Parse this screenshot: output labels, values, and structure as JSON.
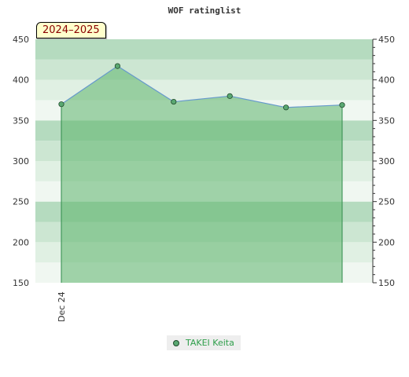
{
  "chart_data": {
    "type": "area",
    "title": "WOF ratinglist",
    "season_label": "2024–2025",
    "x_tick_labels": [
      "Dec 24"
    ],
    "series": [
      {
        "name": "TAKEI Keita",
        "values": [
          370,
          417,
          373,
          380,
          366,
          369
        ]
      }
    ],
    "ylim": [
      150,
      450
    ],
    "y_ticks": [
      150,
      200,
      250,
      300,
      350,
      400,
      450
    ],
    "grid": true,
    "legend_position": "bottom",
    "colors": {
      "line": "#6699cc",
      "fill": "#5cb46c",
      "marker": "#5aa872",
      "legend_text": "#2e9e4a",
      "badge_text": "#8b0000"
    }
  }
}
